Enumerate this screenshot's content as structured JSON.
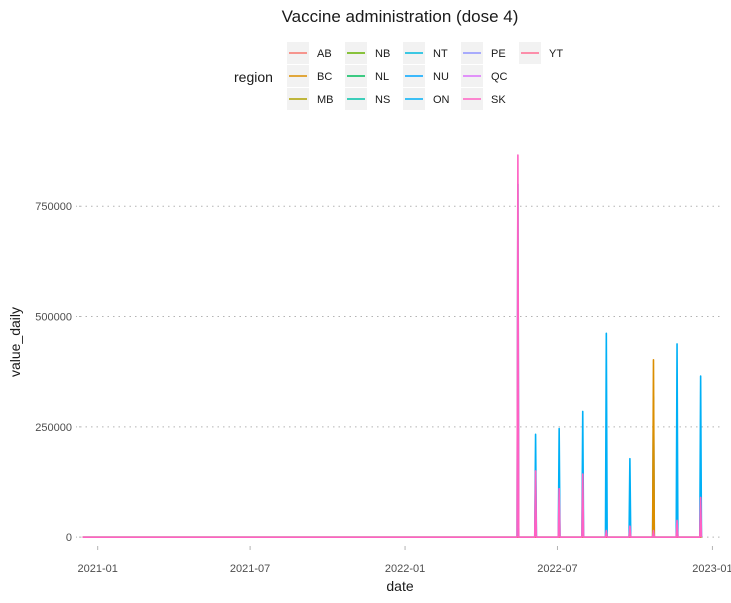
{
  "chart_data": {
    "type": "line",
    "title": "Vaccine administration (dose 4)",
    "xlabel": "date",
    "ylabel": "value_daily",
    "xlim": [
      "2020-12-11",
      "2023-01-10"
    ],
    "ylim": [
      -20000,
      900000
    ],
    "x_ticks": [
      {
        "date": "2021-01-01",
        "label": "2021-01"
      },
      {
        "date": "2021-07-01",
        "label": "2021-07"
      },
      {
        "date": "2022-01-01",
        "label": "2022-01"
      },
      {
        "date": "2022-07-01",
        "label": "2022-07"
      },
      {
        "date": "2023-01-01",
        "label": "2023-01"
      }
    ],
    "y_ticks": [
      {
        "value": 0,
        "label": "0"
      },
      {
        "value": 250000,
        "label": "250000"
      },
      {
        "value": 500000,
        "label": "500000"
      },
      {
        "value": 750000,
        "label": "750000"
      }
    ],
    "grid": "horizontal dotted",
    "legend": {
      "title": "region",
      "position": "top",
      "entries": [
        {
          "name": "AB",
          "color": "#F8766D"
        },
        {
          "name": "BC",
          "color": "#DB8E00"
        },
        {
          "name": "MB",
          "color": "#AEA200"
        },
        {
          "name": "NB",
          "color": "#64B200"
        },
        {
          "name": "NL",
          "color": "#00BD5C"
        },
        {
          "name": "NS",
          "color": "#00C1A7"
        },
        {
          "name": "NT",
          "color": "#00BADE"
        },
        {
          "name": "NU",
          "color": "#00A6FF"
        },
        {
          "name": "ON",
          "color": "#00B0F6"
        },
        {
          "name": "PE",
          "color": "#8F93FF"
        },
        {
          "name": "QC",
          "color": "#DB72FB"
        },
        {
          "name": "SK",
          "color": "#FF61C3"
        },
        {
          "name": "YT",
          "color": "#FF6C91"
        }
      ]
    },
    "series": [
      {
        "name": "ON",
        "color": "#00B0F6",
        "points": [
          {
            "x": "2020-12-14",
            "y": 0
          },
          {
            "x": "2022-05-14",
            "y": 0
          },
          {
            "x": "2022-05-15",
            "y": 800000
          },
          {
            "x": "2022-05-16",
            "y": 0
          },
          {
            "x": "2022-06-04",
            "y": 0
          },
          {
            "x": "2022-06-05",
            "y": 233000
          },
          {
            "x": "2022-06-06",
            "y": 0
          },
          {
            "x": "2022-07-02",
            "y": 0
          },
          {
            "x": "2022-07-03",
            "y": 246000
          },
          {
            "x": "2022-07-04",
            "y": 0
          },
          {
            "x": "2022-07-30",
            "y": 0
          },
          {
            "x": "2022-07-31",
            "y": 285000
          },
          {
            "x": "2022-08-01",
            "y": 0
          },
          {
            "x": "2022-08-27",
            "y": 0
          },
          {
            "x": "2022-08-28",
            "y": 462000
          },
          {
            "x": "2022-08-29",
            "y": 0
          },
          {
            "x": "2022-09-24",
            "y": 0
          },
          {
            "x": "2022-09-25",
            "y": 178000
          },
          {
            "x": "2022-09-26",
            "y": 0
          },
          {
            "x": "2022-10-22",
            "y": 0
          },
          {
            "x": "2022-10-23",
            "y": 318000
          },
          {
            "x": "2022-10-24",
            "y": 0
          },
          {
            "x": "2022-11-19",
            "y": 0
          },
          {
            "x": "2022-11-20",
            "y": 438000
          },
          {
            "x": "2022-11-21",
            "y": 0
          },
          {
            "x": "2022-12-17",
            "y": 0
          },
          {
            "x": "2022-12-18",
            "y": 365000
          },
          {
            "x": "2022-12-19",
            "y": 0
          }
        ]
      },
      {
        "name": "BC",
        "color": "#DB8E00",
        "points": [
          {
            "x": "2020-12-14",
            "y": 0
          },
          {
            "x": "2022-10-22",
            "y": 0
          },
          {
            "x": "2022-10-23",
            "y": 402000
          },
          {
            "x": "2022-10-24",
            "y": 0
          },
          {
            "x": "2022-12-19",
            "y": 0
          }
        ]
      },
      {
        "name": "SK",
        "color": "#FF61C3",
        "points": [
          {
            "x": "2020-12-14",
            "y": 0
          },
          {
            "x": "2022-05-14",
            "y": 0
          },
          {
            "x": "2022-05-15",
            "y": 866000
          },
          {
            "x": "2022-05-16",
            "y": 0
          },
          {
            "x": "2022-06-04",
            "y": 0
          },
          {
            "x": "2022-06-05",
            "y": 150000
          },
          {
            "x": "2022-06-06",
            "y": 0
          },
          {
            "x": "2022-07-02",
            "y": 0
          },
          {
            "x": "2022-07-03",
            "y": 110000
          },
          {
            "x": "2022-07-04",
            "y": 0
          },
          {
            "x": "2022-07-30",
            "y": 0
          },
          {
            "x": "2022-07-31",
            "y": 143000
          },
          {
            "x": "2022-08-01",
            "y": 0
          },
          {
            "x": "2022-08-27",
            "y": 0
          },
          {
            "x": "2022-08-28",
            "y": 15000
          },
          {
            "x": "2022-08-29",
            "y": 0
          },
          {
            "x": "2022-09-24",
            "y": 0
          },
          {
            "x": "2022-09-25",
            "y": 25000
          },
          {
            "x": "2022-09-26",
            "y": 0
          },
          {
            "x": "2022-10-22",
            "y": 0
          },
          {
            "x": "2022-10-23",
            "y": 15000
          },
          {
            "x": "2022-10-24",
            "y": 0
          },
          {
            "x": "2022-11-19",
            "y": 0
          },
          {
            "x": "2022-11-20",
            "y": 38000
          },
          {
            "x": "2022-11-21",
            "y": 0
          },
          {
            "x": "2022-12-17",
            "y": 0
          },
          {
            "x": "2022-12-18",
            "y": 90000
          },
          {
            "x": "2022-12-19",
            "y": 0
          }
        ]
      }
    ]
  }
}
